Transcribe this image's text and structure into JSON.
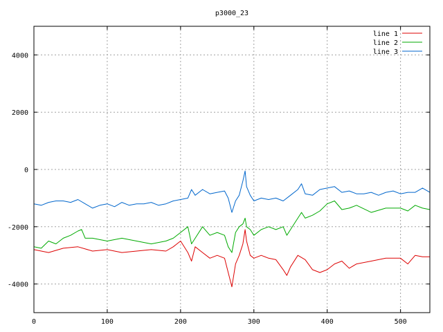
{
  "chart_data": {
    "type": "line",
    "title": "p3000_23",
    "xlabel": "",
    "ylabel": "",
    "xlim": [
      0,
      540
    ],
    "ylim": [
      -5000,
      5000
    ],
    "xticks": [
      0,
      100,
      200,
      300,
      400,
      500
    ],
    "yticks": [
      -4000,
      -2000,
      0,
      2000,
      4000
    ],
    "grid": true,
    "legend_position": "top-right",
    "series": [
      {
        "name": "line 1",
        "color": "#dd0000",
        "x": [
          0,
          20,
          40,
          60,
          80,
          100,
          120,
          140,
          160,
          180,
          190,
          200,
          210,
          215,
          220,
          230,
          240,
          250,
          260,
          265,
          270,
          275,
          280,
          285,
          288,
          290,
          295,
          300,
          310,
          320,
          330,
          340,
          345,
          350,
          360,
          370,
          380,
          390,
          400,
          410,
          420,
          430,
          440,
          460,
          480,
          500,
          510,
          520,
          530,
          540
        ],
        "y": [
          -2800,
          -2900,
          -2750,
          -2700,
          -2850,
          -2800,
          -2900,
          -2850,
          -2800,
          -2850,
          -2700,
          -2500,
          -2900,
          -3200,
          -2700,
          -2900,
          -3100,
          -3000,
          -3100,
          -3600,
          -4100,
          -3300,
          -3000,
          -2600,
          -2100,
          -2500,
          -3000,
          -3100,
          -3000,
          -3100,
          -3150,
          -3500,
          -3700,
          -3400,
          -3000,
          -3150,
          -3500,
          -3600,
          -3500,
          -3300,
          -3200,
          -3450,
          -3300,
          -3200,
          -3100,
          -3100,
          -3300,
          -3000,
          -3050,
          -3050
        ]
      },
      {
        "name": "line 2",
        "color": "#00aa00",
        "x": [
          0,
          10,
          20,
          30,
          40,
          50,
          60,
          65,
          70,
          80,
          100,
          120,
          140,
          160,
          180,
          190,
          200,
          210,
          215,
          220,
          230,
          240,
          250,
          260,
          265,
          270,
          275,
          280,
          285,
          288,
          290,
          295,
          300,
          310,
          320,
          330,
          340,
          345,
          350,
          360,
          365,
          370,
          380,
          390,
          400,
          410,
          420,
          430,
          440,
          460,
          480,
          500,
          510,
          520,
          530,
          540
        ],
        "y": [
          -2700,
          -2750,
          -2500,
          -2600,
          -2400,
          -2300,
          -2150,
          -2100,
          -2400,
          -2400,
          -2500,
          -2400,
          -2500,
          -2600,
          -2500,
          -2400,
          -2200,
          -2000,
          -2600,
          -2400,
          -2000,
          -2300,
          -2200,
          -2300,
          -2700,
          -2900,
          -2200,
          -2000,
          -1900,
          -1700,
          -2000,
          -2100,
          -2300,
          -2100,
          -2000,
          -2100,
          -2000,
          -2300,
          -2100,
          -1700,
          -1500,
          -1700,
          -1600,
          -1450,
          -1200,
          -1100,
          -1400,
          -1350,
          -1250,
          -1500,
          -1350,
          -1350,
          -1450,
          -1250,
          -1350,
          -1400
        ]
      },
      {
        "name": "line 3",
        "color": "#0066cc",
        "x": [
          0,
          10,
          20,
          30,
          40,
          50,
          60,
          70,
          80,
          90,
          100,
          110,
          120,
          130,
          140,
          150,
          160,
          170,
          180,
          190,
          200,
          210,
          215,
          220,
          230,
          240,
          250,
          260,
          265,
          270,
          275,
          280,
          285,
          288,
          290,
          295,
          300,
          310,
          320,
          330,
          340,
          350,
          360,
          365,
          370,
          380,
          390,
          400,
          410,
          420,
          430,
          440,
          450,
          460,
          470,
          480,
          490,
          500,
          510,
          520,
          530,
          540
        ],
        "y": [
          -1200,
          -1250,
          -1150,
          -1100,
          -1100,
          -1150,
          -1050,
          -1200,
          -1350,
          -1250,
          -1200,
          -1300,
          -1150,
          -1250,
          -1200,
          -1200,
          -1150,
          -1250,
          -1200,
          -1100,
          -1050,
          -1000,
          -700,
          -900,
          -700,
          -850,
          -800,
          -750,
          -1000,
          -1500,
          -1100,
          -900,
          -400,
          -50,
          -600,
          -900,
          -1100,
          -1000,
          -1050,
          -1000,
          -1100,
          -900,
          -700,
          -500,
          -850,
          -900,
          -700,
          -650,
          -600,
          -800,
          -750,
          -850,
          -850,
          -800,
          -900,
          -800,
          -750,
          -850,
          -800,
          -800,
          -650,
          -800
        ]
      }
    ]
  }
}
